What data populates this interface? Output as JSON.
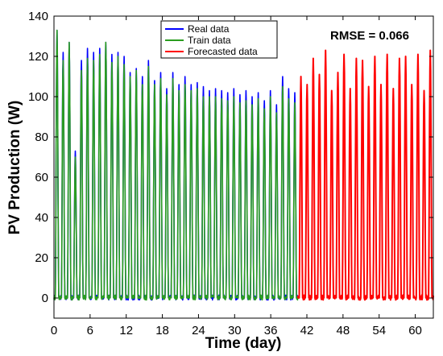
{
  "chart_data": {
    "type": "line",
    "xlabel": "Time (day)",
    "ylabel": "PV Production (W)",
    "xlim": [
      0,
      63
    ],
    "ylim": [
      -10,
      140
    ],
    "xticks": [
      0,
      6,
      12,
      18,
      24,
      30,
      36,
      42,
      48,
      54,
      60
    ],
    "yticks": [
      0,
      20,
      40,
      60,
      80,
      100,
      120,
      140
    ],
    "grid": false,
    "legend_position": "top-center",
    "annotation": "RMSE = 0.066",
    "series": [
      {
        "name": "Real data",
        "color": "#0000ff",
        "x_range": [
          0,
          40.5
        ],
        "daily_peaks": [
          133,
          122,
          127,
          73,
          118,
          124,
          122,
          124,
          127,
          121,
          122,
          120,
          112,
          114,
          110,
          118,
          108,
          112,
          104,
          112,
          106,
          110,
          106,
          107,
          105,
          103,
          104,
          103,
          102,
          104,
          101,
          103,
          100,
          102,
          98,
          103,
          96,
          110,
          104,
          102
        ]
      },
      {
        "name": "Train data",
        "color": "#2a9d1f",
        "x_range": [
          0,
          40.5
        ],
        "daily_peaks": [
          133,
          118,
          127,
          70,
          113,
          119,
          118,
          121,
          127,
          117,
          120,
          116,
          110,
          113,
          106,
          115,
          106,
          109,
          101,
          109,
          103,
          106,
          103,
          104,
          100,
          100,
          100,
          99,
          98,
          100,
          97,
          98,
          96,
          99,
          94,
          100,
          92,
          105,
          99,
          97
        ]
      },
      {
        "name": "Forecasted data",
        "color": "#ff0000",
        "x_range": [
          40.5,
          63
        ],
        "daily_peaks": [
          110,
          106,
          119,
          111,
          123,
          103,
          112,
          121,
          104,
          119,
          118,
          105,
          120,
          106,
          121,
          104,
          119,
          120,
          106,
          121,
          103,
          123
        ]
      }
    ]
  }
}
